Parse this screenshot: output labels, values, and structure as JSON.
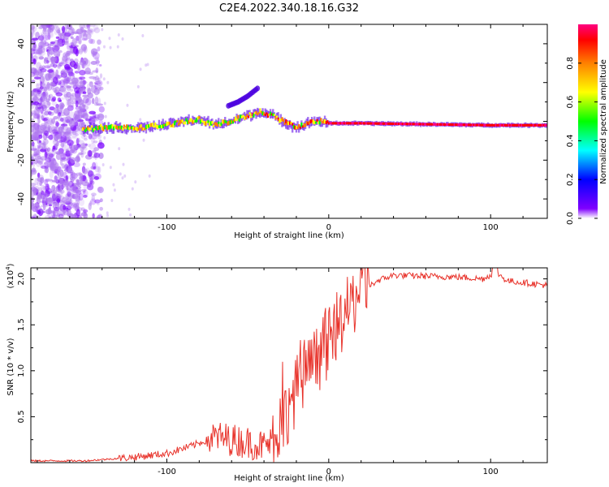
{
  "title": "C2E4.2022.340.18.16.G32",
  "chart_data": [
    {
      "type": "heatmap",
      "xlabel": "Height of straight line (km)",
      "ylabel": "Frequency (Hz)",
      "xlim": [
        -184,
        135
      ],
      "ylim": [
        -50,
        50
      ],
      "x_ticks": [
        -100,
        0,
        100
      ],
      "x_tick_labels": [
        "-100",
        "0",
        "100"
      ],
      "y_ticks": [
        -40,
        -20,
        0,
        20,
        40
      ],
      "y_tick_labels": [
        "-40",
        "-20",
        "0",
        "20",
        "40"
      ],
      "ridge": {
        "x": [
          -150,
          -140,
          -120,
          -100,
          -90,
          -80,
          -70,
          -60,
          -50,
          -42,
          -35,
          -28,
          -20,
          -15,
          -10,
          -5,
          0,
          20,
          60,
          100,
          135
        ],
        "freq": [
          -4,
          -3,
          -3.5,
          -2,
          0,
          1,
          -2,
          0,
          3,
          5,
          3,
          0,
          -3,
          -2,
          0,
          0,
          -1,
          -1,
          -1.5,
          -2,
          -2
        ]
      },
      "branch": {
        "x": [
          -62,
          -56,
          -50,
          -44
        ],
        "freq": [
          8,
          10,
          13,
          17
        ]
      },
      "colorbar": {
        "label": "Normalized spectral amplitude",
        "range": [
          0,
          1
        ],
        "ticks": [
          0.0,
          0.2,
          0.4,
          0.6,
          0.8
        ],
        "tick_labels": [
          "0.0",
          "0.2",
          "0.4",
          "0.6",
          "0.8"
        ],
        "colors": [
          "#ffffff",
          "#8000ff",
          "#0000ff",
          "#00ffff",
          "#00ff00",
          "#ffff00",
          "#ff8000",
          "#ff0000",
          "#ff0080"
        ]
      }
    },
    {
      "type": "line",
      "xlabel": "Height of straight line (km)",
      "ylabel": "SNR (10 * v/v)",
      "multiplier_label": "(x10",
      "multiplier_exp": "4",
      "xlim": [
        -184,
        135
      ],
      "ylim": [
        0,
        2.12
      ],
      "x_ticks": [
        -100,
        0,
        100
      ],
      "x_tick_labels": [
        "-100",
        "0",
        "100"
      ],
      "y_ticks": [
        0.5,
        1.0,
        1.5,
        2.0
      ],
      "y_tick_labels": [
        "0.5",
        "1.0",
        "1.5",
        "2.0"
      ],
      "color": "#e8332b",
      "trend": {
        "x": [
          -184,
          -150,
          -120,
          -100,
          -85,
          -70,
          -60,
          -50,
          -40,
          -35,
          -30,
          -25,
          -20,
          -15,
          -10,
          -5,
          0,
          5,
          10,
          15,
          20,
          25,
          30,
          40,
          60,
          80,
          95,
          100,
          103,
          110,
          120,
          135
        ],
        "y": [
          0.02,
          0.02,
          0.06,
          0.1,
          0.18,
          0.28,
          0.25,
          0.22,
          0.18,
          0.22,
          0.4,
          0.6,
          0.8,
          0.95,
          1.05,
          1.18,
          1.3,
          1.48,
          1.6,
          1.75,
          1.85,
          1.92,
          1.98,
          2.04,
          2.03,
          2.02,
          2.0,
          2.04,
          2.08,
          1.98,
          1.96,
          1.93
        ]
      }
    }
  ]
}
